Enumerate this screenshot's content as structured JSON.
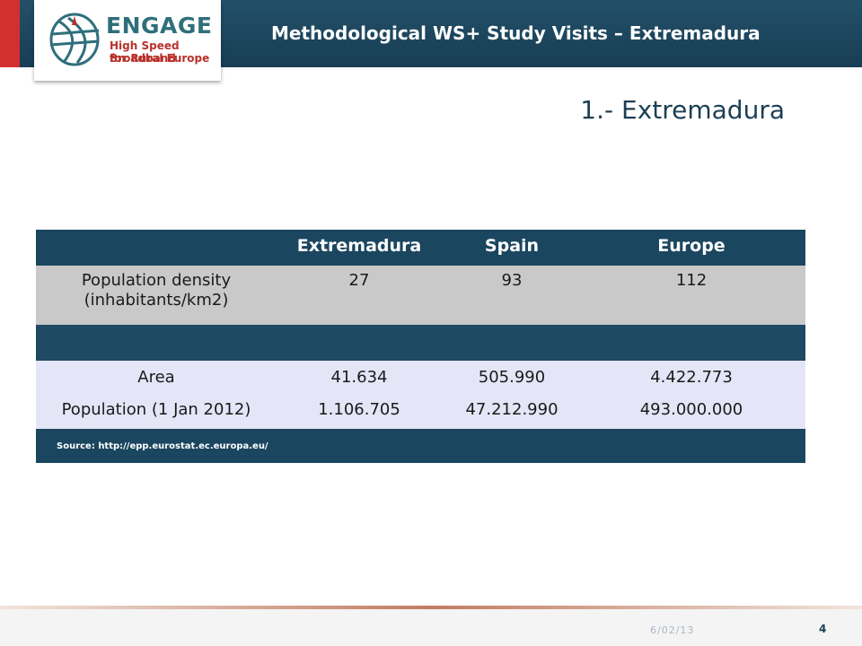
{
  "header": {
    "title": "Methodological WS+ Study Visits – Extremadura",
    "brand_color": "#173e55",
    "accent_color": "#d42f2f"
  },
  "logo": {
    "name": "ENGAGE",
    "tagline_line1": "High Speed Broadband",
    "tagline_line2": "for Rural Europe"
  },
  "section_title": "1.- Extremadura",
  "table": {
    "columns": [
      "",
      "Extremadura",
      "Spain",
      "Europe"
    ],
    "rows": [
      {
        "label": "Population density\n(inhabitants/km2)",
        "values": [
          "27",
          "93",
          "112"
        ]
      },
      {
        "label": "Area",
        "values": [
          "41.634",
          "505.990",
          "4.422.773"
        ]
      },
      {
        "label": "Population (1 Jan 2012)",
        "values": [
          "1.106.705",
          "47.212.990",
          "493.000.000"
        ]
      }
    ],
    "source": "Source: http://epp.eurostat.ec.europa.eu/"
  },
  "footer": {
    "date": "6/02/13",
    "page": "4"
  }
}
